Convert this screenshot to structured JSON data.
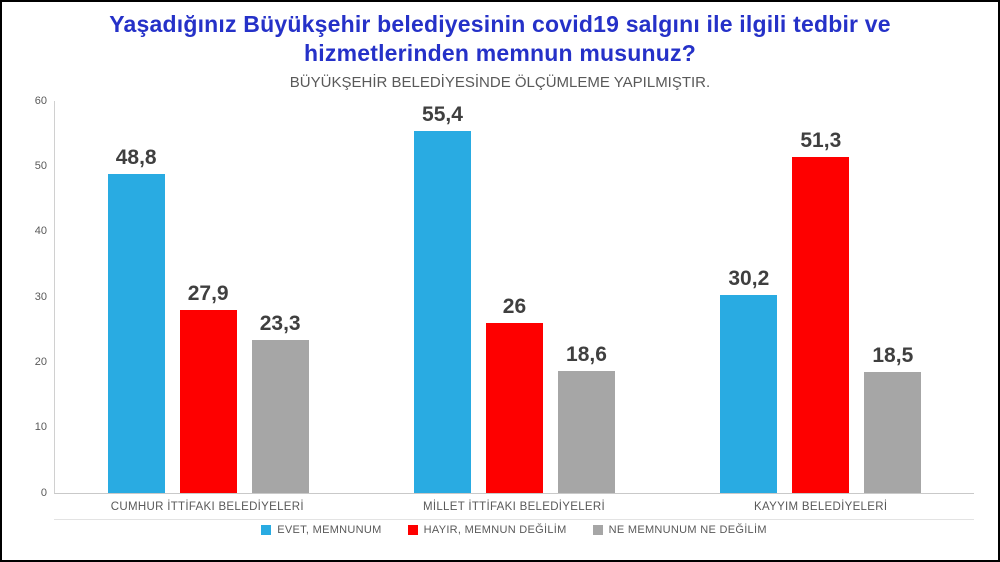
{
  "chart_data": {
    "type": "bar",
    "title": "Yaşadığınız Büyükşehir belediyesinin covid19 salgını ile ilgili tedbir ve hizmetlerinden memnun musunuz?",
    "subtitle": "BÜYÜKŞEHİR BELEDİYESİNDE ÖLÇÜMLEME YAPILMIŞTIR.",
    "categories": [
      "CUMHUR İTTİFAKI BELEDİYELERİ",
      "MİLLET İTTİFAKI BELEDİYELERİ",
      "KAYYIM BELEDİYELERİ"
    ],
    "series": [
      {
        "name": "EVET, MEMNUNUM",
        "color": "#29abe2",
        "values": [
          48.8,
          55.4,
          30.2
        ],
        "labels": [
          "48,8",
          "55,4",
          "30,2"
        ]
      },
      {
        "name": "HAYIR, MEMNUN DEĞİLİM",
        "color": "#fe0000",
        "values": [
          27.9,
          26,
          51.3
        ],
        "labels": [
          "27,9",
          "26",
          "51,3"
        ]
      },
      {
        "name": "NE MEMNUNUM NE DEĞİLİM",
        "color": "#a6a6a6",
        "values": [
          23.3,
          18.6,
          18.5
        ],
        "labels": [
          "23,3",
          "18,6",
          "18,5"
        ]
      }
    ],
    "xlabel": "",
    "ylabel": "",
    "ylim": [
      0,
      60
    ],
    "yticks": [
      0,
      10,
      20,
      30,
      40,
      50,
      60
    ],
    "grid": false,
    "legend_position": "bottom"
  },
  "colors": {
    "title": "#2531c8",
    "value_label": "#3f3f3f",
    "axis_text": "#595959"
  }
}
